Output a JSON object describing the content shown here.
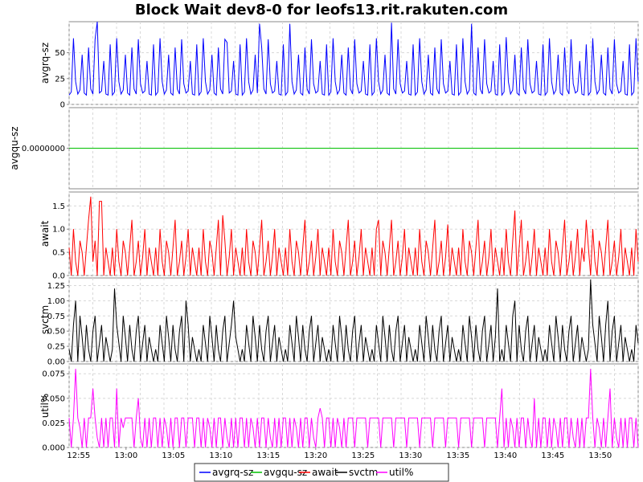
{
  "chart_data": {
    "type": "line",
    "title": "Block Wait dev8-0 for leofs13.rit.rakuten.com",
    "x_start": "12:54",
    "x_end": "13:54",
    "x_ticks": [
      "12:55",
      "13:00",
      "13:05",
      "13:10",
      "13:15",
      "13:20",
      "13:25",
      "13:30",
      "13:35",
      "13:40",
      "13:45",
      "13:50"
    ],
    "grid": true,
    "legend_placement": "bottom-center",
    "legend": [
      "avgrq-sz",
      "avgqu-sz",
      "await",
      "svctm",
      "util%"
    ],
    "panels": [
      {
        "ylabel": "avgrq-sz",
        "color": "#0000ff",
        "ylim": [
          0,
          80
        ],
        "yticks": [
          "0",
          "25",
          "50"
        ],
        "pattern": [
          9,
          12,
          64,
          22,
          10,
          14,
          48,
          11,
          9,
          55,
          15,
          10,
          63,
          20,
          11,
          13,
          42,
          10,
          9,
          58
        ],
        "peak_points": [
          [
            13,
            80
          ],
          [
            73,
            60
          ],
          [
            88,
            78
          ],
          [
            102,
            78
          ],
          [
            149,
            79
          ],
          [
            186,
            78
          ],
          [
            202,
            65
          ]
        ]
      },
      {
        "ylabel": "avgqu-sz",
        "color": "#00c000",
        "ylim": [
          -1,
          1
        ],
        "yticks": [
          "0.0000000"
        ],
        "pattern": [
          0
        ]
      },
      {
        "ylabel": "await",
        "color": "#ff0000",
        "ylim": [
          0,
          1.8
        ],
        "yticks": [
          "0.0",
          "0.5",
          "1.0",
          "1.5"
        ],
        "pattern": [
          0.6,
          0,
          1.0,
          0.3,
          0,
          0.75,
          0.5,
          0,
          0.6,
          1.2,
          0,
          0.3,
          0.75,
          0,
          0.4,
          1.0,
          0,
          0.6,
          0.3,
          0
        ],
        "peak_points": [
          [
            10,
            1.7
          ],
          [
            14,
            1.6
          ],
          [
            15,
            1.6
          ],
          [
            71,
            1.3
          ],
          [
            143,
            1.2
          ],
          [
            175,
            1.1
          ],
          [
            206,
            1.4
          ],
          [
            239,
            1.2
          ]
        ]
      },
      {
        "ylabel": "svctm",
        "color": "#000000",
        "ylim": [
          0,
          1.375
        ],
        "yticks": [
          "0.00",
          "0.25",
          "0.50",
          "0.75",
          "1.00",
          "1.25"
        ],
        "pattern": [
          0.2,
          0,
          0.6,
          0.3,
          0,
          0.75,
          0.4,
          0,
          0.6,
          0.2,
          0,
          0.5,
          0.75,
          0,
          0.3,
          0.6,
          0,
          0.4,
          0.2,
          0
        ],
        "peak_points": [
          [
            3,
            1.0
          ],
          [
            21,
            1.2
          ],
          [
            54,
            1.0
          ],
          [
            76,
            1.0
          ],
          [
            198,
            1.2
          ],
          [
            206,
            1.0
          ],
          [
            241,
            1.35
          ],
          [
            249,
            1.0
          ]
        ]
      },
      {
        "ylabel": "util%",
        "color": "#ff00ff",
        "ylim": [
          0,
          0.085
        ],
        "yticks": [
          "0.000",
          "0.025",
          "0.050",
          "0.075"
        ],
        "pattern": [
          0.03,
          0,
          0.03,
          0,
          0.03,
          0.02,
          0,
          0.03,
          0,
          0.03,
          0.03,
          0,
          0.03,
          0.01,
          0,
          0.03,
          0,
          0.03,
          0,
          0.03
        ],
        "flat_ranges": [
          [
            26,
            32,
            0.03
          ],
          [
            52,
            56,
            0.03
          ],
          [
            131,
            200,
            0.03
          ]
        ],
        "peak_points": [
          [
            3,
            0.08
          ],
          [
            11,
            0.06
          ],
          [
            22,
            0.06
          ],
          [
            32,
            0.05
          ],
          [
            116,
            0.04
          ],
          [
            200,
            0.06
          ],
          [
            215,
            0.05
          ],
          [
            241,
            0.08
          ],
          [
            250,
            0.06
          ]
        ]
      }
    ]
  }
}
